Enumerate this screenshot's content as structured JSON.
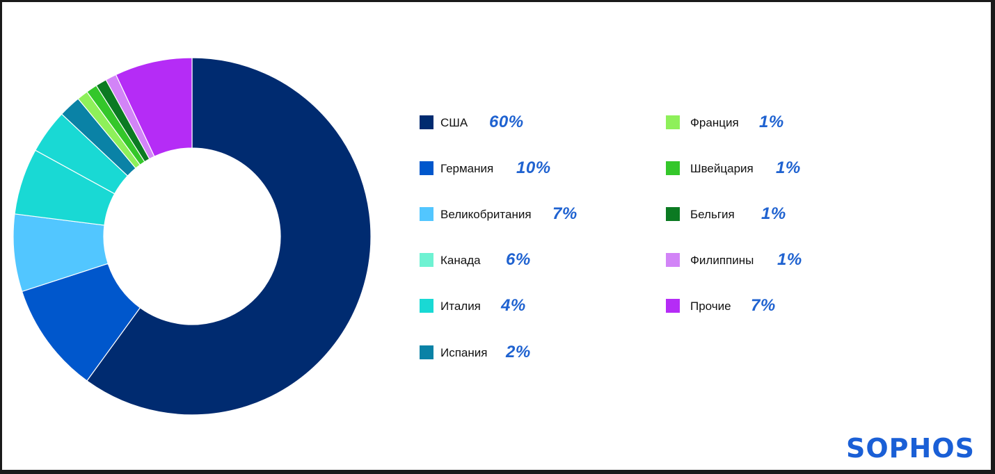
{
  "chart_data": {
    "type": "pie",
    "donut": true,
    "categories": [
      "США",
      "Германия",
      "Великобритания",
      "Канада",
      "Италия",
      "Испания",
      "Франция",
      "Швейцария",
      "Бельгия",
      "Филиппины",
      "Прочие"
    ],
    "values": [
      60,
      10,
      7,
      6,
      4,
      2,
      1,
      1,
      1,
      1,
      7
    ],
    "labels": [
      "60%",
      "10%",
      "7%",
      "6%",
      "4%",
      "2%",
      "1%",
      "1%",
      "1%",
      "1%",
      "7%"
    ],
    "colors": [
      "#002b70",
      "#0057cc",
      "#52c6ff",
      "#6ef2d2",
      "#19d9d4",
      "#0a82a6",
      "#8ef05a",
      "#34c72a",
      "#0b7a22",
      "#d284f7",
      "#b52cf6"
    ],
    "legend_position": "right"
  },
  "slice_display_colors": [
    "#002b70",
    "#0057cc",
    "#52c6ff",
    "#19d9d4",
    "#19d9d4",
    "#0a82a6",
    "#8ef05a",
    "#34c72a",
    "#0b7a22",
    "#d284f7",
    "#b52cf6"
  ],
  "logo": {
    "text": "SOPHOS",
    "color": "#1a5fd6"
  },
  "percent_color": "#1f62d0"
}
